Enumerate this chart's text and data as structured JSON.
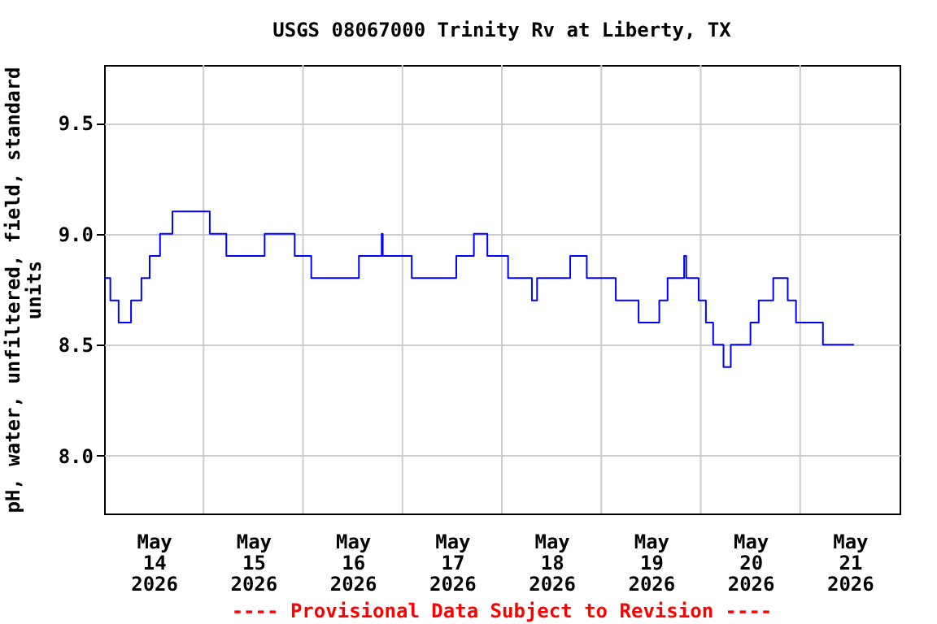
{
  "chart_data": {
    "type": "step",
    "title": "USGS 08067000 Trinity Rv at Liberty, TX",
    "ylabel": "pH, water, unfiltered, field, standard units",
    "annotations": [
      "---- Provisional Data Subject to Revision ----"
    ],
    "x": [
      "2026-05-14T00:00",
      "2026-05-14T01:30",
      "2026-05-14T03:30",
      "2026-05-14T06:30",
      "2026-05-14T09:00",
      "2026-05-14T11:00",
      "2026-05-14T13:30",
      "2026-05-14T16:30",
      "2026-05-15T01:30",
      "2026-05-15T05:30",
      "2026-05-15T14:45",
      "2026-05-15T22:00",
      "2026-05-16T02:00",
      "2026-05-16T13:30",
      "2026-05-16T19:00",
      "2026-05-16T19:15",
      "2026-05-17T02:15",
      "2026-05-17T13:00",
      "2026-05-17T17:15",
      "2026-05-17T20:30",
      "2026-05-18T01:30",
      "2026-05-18T07:15",
      "2026-05-18T08:30",
      "2026-05-18T16:30",
      "2026-05-18T20:30",
      "2026-05-19T03:30",
      "2026-05-19T09:00",
      "2026-05-19T14:00",
      "2026-05-19T16:00",
      "2026-05-19T20:00",
      "2026-05-19T20:30",
      "2026-05-19T23:30",
      "2026-05-20T01:15",
      "2026-05-20T03:00",
      "2026-05-20T05:30",
      "2026-05-20T07:15",
      "2026-05-20T12:00",
      "2026-05-20T14:00",
      "2026-05-20T17:30",
      "2026-05-20T21:00",
      "2026-05-20T23:00",
      "2026-05-21T05:30",
      "2026-05-21T13:00"
    ],
    "series": [
      {
        "color": "#0000ff",
        "values": [
          8.8,
          8.7,
          8.6,
          8.7,
          8.8,
          8.9,
          9.0,
          9.1,
          9.0,
          8.9,
          9.0,
          8.9,
          8.8,
          8.9,
          9.0,
          8.9,
          8.8,
          8.9,
          9.0,
          8.9,
          8.8,
          8.7,
          8.8,
          8.9,
          8.8,
          8.7,
          8.6,
          8.7,
          8.8,
          8.9,
          8.8,
          8.7,
          8.6,
          8.5,
          8.4,
          8.5,
          8.6,
          8.7,
          8.8,
          8.7,
          8.6,
          8.5,
          8.5
        ]
      }
    ],
    "xlim": [
      "2026-05-14T00:00",
      "2026-05-22T00:00"
    ],
    "xticks": [
      {
        "value": "2026-05-14T12:00",
        "label": "May 14 2026"
      },
      {
        "value": "2026-05-15T12:00",
        "label": "May 15 2026"
      },
      {
        "value": "2026-05-16T12:00",
        "label": "May 16 2026"
      },
      {
        "value": "2026-05-17T12:00",
        "label": "May 17 2026"
      },
      {
        "value": "2026-05-18T12:00",
        "label": "May 18 2026"
      },
      {
        "value": "2026-05-19T12:00",
        "label": "May 19 2026"
      },
      {
        "value": "2026-05-20T12:00",
        "label": "May 20 2026"
      },
      {
        "value": "2026-05-21T12:00",
        "label": "May 21 2026"
      },
      {
        "value": "2026-05-15T00:00",
        "label": null
      },
      {
        "value": "2026-05-16T00:00",
        "label": null
      },
      {
        "value": "2026-05-17T00:00",
        "label": null
      },
      {
        "value": "2026-05-18T00:00",
        "label": null
      },
      {
        "value": "2026-05-19T00:00",
        "label": null
      },
      {
        "value": "2026-05-20T00:00",
        "label": null
      },
      {
        "value": "2026-05-21T00:00",
        "label": null
      }
    ],
    "ylim": [
      7.74,
      9.76
    ],
    "yticks": [
      {
        "value": 8,
        "label": "8.0"
      },
      8.5,
      {
        "value": 9,
        "label": "9.0"
      },
      9.5
    ],
    "grid": true
  }
}
